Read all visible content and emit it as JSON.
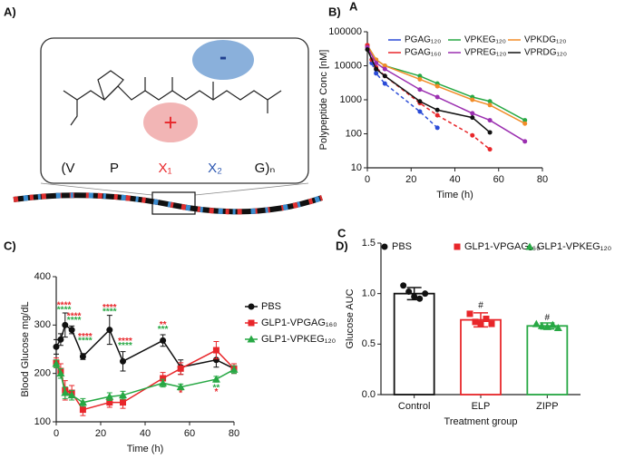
{
  "diagram": {
    "panel_label": "A)",
    "residues": [
      "(V",
      "P",
      "X₁",
      "X₂",
      "G)ₙ"
    ],
    "plus": "+",
    "minus": "-"
  },
  "chart_data": [
    {
      "type": "line",
      "panel_label": "B)",
      "corner_letter": "A",
      "log_y": true,
      "ylabel": "Polypeptide Conc [nM]",
      "xlabel": "Time (h)",
      "xlim": [
        0,
        80
      ],
      "xticks": [
        0,
        20,
        40,
        60,
        80
      ],
      "ylim": [
        10,
        100000
      ],
      "yticks": [
        10,
        100,
        1000,
        10000,
        100000
      ],
      "series": [
        {
          "name": "PGAG₁₂₀",
          "color": "#2a4bd7",
          "dashed": true,
          "x": [
            0,
            2,
            4,
            8,
            24,
            32
          ],
          "values": [
            40000,
            12000,
            6000,
            3000,
            450,
            150
          ]
        },
        {
          "name": "VPKEG₁₂₀",
          "color": "#27a844",
          "x": [
            0,
            4,
            8,
            24,
            32,
            48,
            56,
            72
          ],
          "values": [
            40000,
            15000,
            10000,
            5000,
            3000,
            1200,
            900,
            250
          ]
        },
        {
          "name": "VPKDG₁₂₀",
          "color": "#f28c28",
          "x": [
            0,
            4,
            8,
            24,
            32,
            48,
            56,
            72
          ],
          "values": [
            40000,
            15000,
            10000,
            4000,
            2500,
            1000,
            700,
            200
          ]
        },
        {
          "name": "PGAG₁₆₀",
          "color": "#e8262a",
          "dashed": true,
          "x": [
            0,
            2,
            4,
            8,
            24,
            32,
            48,
            56
          ],
          "values": [
            40000,
            15000,
            9000,
            5000,
            800,
            350,
            90,
            35
          ]
        },
        {
          "name": "VPREG₁₂₀",
          "color": "#9b2fb0",
          "x": [
            0,
            4,
            8,
            24,
            32,
            48,
            56,
            72
          ],
          "values": [
            35000,
            12000,
            8000,
            2000,
            1200,
            400,
            250,
            60
          ]
        },
        {
          "name": "VPRDG₁₂₀",
          "color": "#111111",
          "x": [
            0,
            4,
            8,
            24,
            32,
            48,
            56
          ],
          "values": [
            30000,
            8000,
            5000,
            900,
            500,
            300,
            110
          ]
        }
      ]
    },
    {
      "type": "line",
      "panel_label": "C)",
      "ylabel": "Blood Glucose mg/dL",
      "xlabel": "Time (h)",
      "xlim": [
        0,
        80
      ],
      "xticks": [
        0,
        20,
        40,
        60,
        80
      ],
      "ylim": [
        100,
        400
      ],
      "yticks": [
        100,
        200,
        300,
        400
      ],
      "x": [
        0,
        2,
        4,
        7,
        12,
        24,
        30,
        48,
        56,
        72,
        80
      ],
      "series": [
        {
          "name": "PBS",
          "color": "#111111",
          "marker": "circle",
          "values": [
            255,
            270,
            300,
            290,
            235,
            290,
            225,
            268,
            213,
            228,
            210
          ],
          "errors": [
            15,
            12,
            25,
            8,
            6,
            30,
            20,
            12,
            15,
            15,
            10
          ]
        },
        {
          "name": "GLP1-VPGAG₁₆₀",
          "color": "#e8262a",
          "marker": "square",
          "values": [
            222,
            205,
            165,
            160,
            125,
            140,
            140,
            190,
            210,
            248,
            210
          ],
          "errors": [
            10,
            15,
            20,
            15,
            12,
            10,
            12,
            12,
            12,
            18,
            10
          ]
        },
        {
          "name": "GLP1-VPKEG₁₂₀",
          "color": "#27a844",
          "marker": "triangle",
          "values": [
            220,
            200,
            160,
            155,
            140,
            152,
            155,
            180,
            172,
            188,
            208
          ],
          "errors": [
            8,
            10,
            12,
            10,
            8,
            8,
            8,
            8,
            6,
            6,
            8
          ]
        }
      ],
      "annotations": [
        {
          "x": 3.5,
          "y": 340,
          "text": "****",
          "color": "#e8262a"
        },
        {
          "x": 3.5,
          "y": 331,
          "text": "****",
          "color": "#27a844"
        },
        {
          "x": 8,
          "y": 318,
          "text": "****",
          "color": "#e8262a"
        },
        {
          "x": 8,
          "y": 309,
          "text": "****",
          "color": "#27a844"
        },
        {
          "x": 13,
          "y": 276,
          "text": "****",
          "color": "#e8262a"
        },
        {
          "x": 13,
          "y": 267,
          "text": "****",
          "color": "#27a844"
        },
        {
          "x": 24,
          "y": 336,
          "text": "****",
          "color": "#e8262a"
        },
        {
          "x": 24,
          "y": 327,
          "text": "****",
          "color": "#27a844"
        },
        {
          "x": 31,
          "y": 266,
          "text": "****",
          "color": "#e8262a"
        },
        {
          "x": 31,
          "y": 257,
          "text": "****",
          "color": "#27a844"
        },
        {
          "x": 48,
          "y": 300,
          "text": "**",
          "color": "#e8262a"
        },
        {
          "x": 48,
          "y": 291,
          "text": "***",
          "color": "#27a844"
        },
        {
          "x": 56,
          "y": 158,
          "text": "*",
          "color": "#e8262a"
        },
        {
          "x": 72,
          "y": 170,
          "text": "**",
          "color": "#27a844"
        },
        {
          "x": 72,
          "y": 161,
          "text": "*",
          "color": "#e8262a"
        }
      ]
    },
    {
      "type": "bar",
      "panel_label": "D)",
      "corner_letter": "C",
      "ylabel": "Glucose AUC",
      "xlabel": "Treatment group",
      "categories": [
        "Control",
        "ELP",
        "ZIPP"
      ],
      "legend": [
        "PBS",
        "GLP1-VPGAG₁₆₀",
        "GLP1-VPKEG₁₂₀"
      ],
      "markers": [
        "circle",
        "square",
        "triangle"
      ],
      "colors": [
        "#111111",
        "#e8262a",
        "#27a844"
      ],
      "values": [
        1.0,
        0.74,
        0.68
      ],
      "errors": [
        0.06,
        0.07,
        0.03
      ],
      "points": [
        [
          1.08,
          1.02,
          0.97,
          0.95,
          1.0
        ],
        [
          0.8,
          0.72,
          0.7,
          0.75,
          0.7
        ],
        [
          0.7,
          0.68,
          0.67,
          0.69,
          0.66
        ]
      ],
      "ylim": [
        0,
        1.5
      ],
      "yticks": [
        {
          "value": 0,
          "label": "0.0"
        },
        0.5,
        {
          "value": 1,
          "label": "1.0"
        },
        1.5
      ],
      "annotations": [
        {
          "category": 1,
          "y": 0.88,
          "text": "#"
        },
        {
          "category": 2,
          "y": 0.76,
          "text": "#"
        }
      ]
    }
  ]
}
